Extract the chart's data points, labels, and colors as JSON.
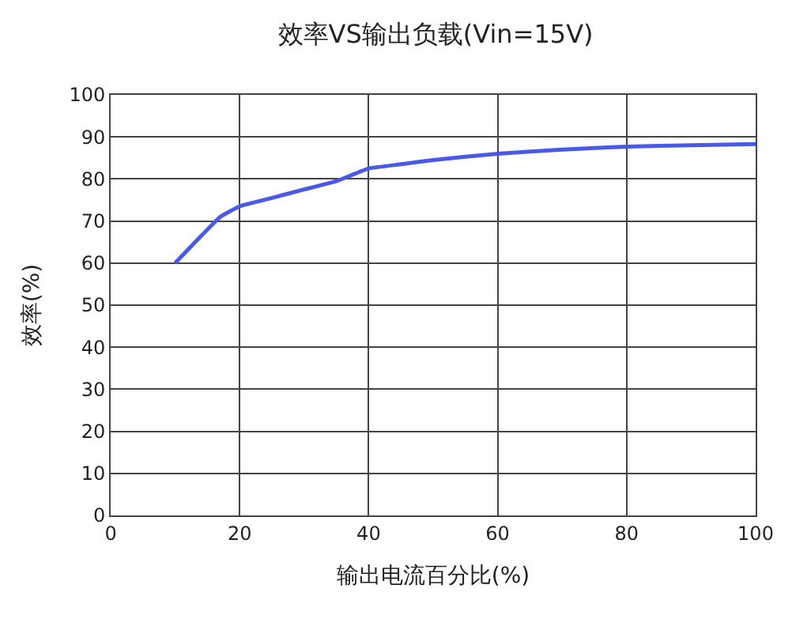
{
  "chart_data": {
    "type": "line",
    "title": "效率VS输出负载(Vin=15V)",
    "xlabel": "输出电流百分比(%)",
    "ylabel": "效率(%)",
    "x": [
      10,
      17,
      20,
      25,
      30,
      35,
      40,
      45,
      50,
      60,
      70,
      80,
      90,
      100
    ],
    "series": [
      {
        "color": "#4a5ae8",
        "values": [
          60,
          71,
          73.5,
          75.5,
          77.5,
          79.5,
          82.5,
          83.5,
          84.5,
          86,
          87,
          87.7,
          88,
          88.3
        ]
      }
    ],
    "xlim": [
      0,
      100
    ],
    "xticks": [
      0,
      20,
      40,
      60,
      80,
      100
    ],
    "ylim": [
      0,
      100
    ],
    "yticks": [
      0,
      10,
      20,
      30,
      40,
      50,
      60,
      70,
      80,
      90,
      100
    ],
    "grid": true,
    "marker": "none",
    "line_style": "solid"
  }
}
